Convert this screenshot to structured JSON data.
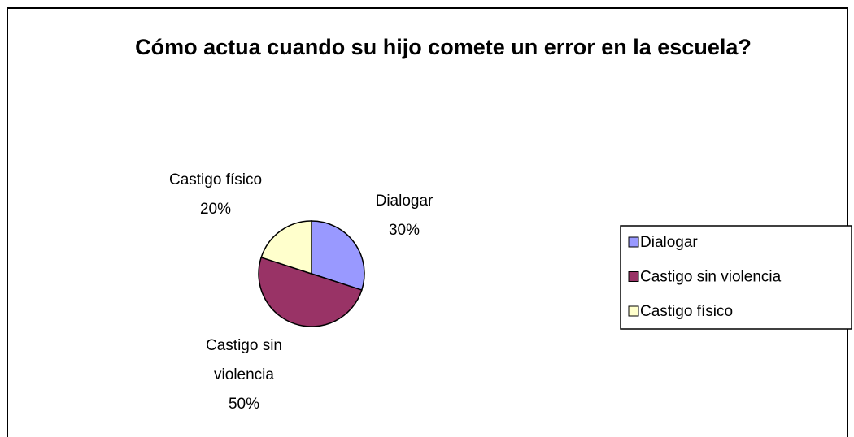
{
  "chart_data": {
    "type": "pie",
    "title": "Cómo actua cuando su hijo comete un error en la escuela?",
    "categories": [
      "Dialogar",
      "Castigo sin violencia",
      "Castigo físico"
    ],
    "values": [
      30,
      50,
      20
    ],
    "value_labels": [
      "30%",
      "50%",
      "20%"
    ],
    "colors": [
      "#9999ff",
      "#993366",
      "#ffffcc"
    ],
    "legend": "right"
  }
}
